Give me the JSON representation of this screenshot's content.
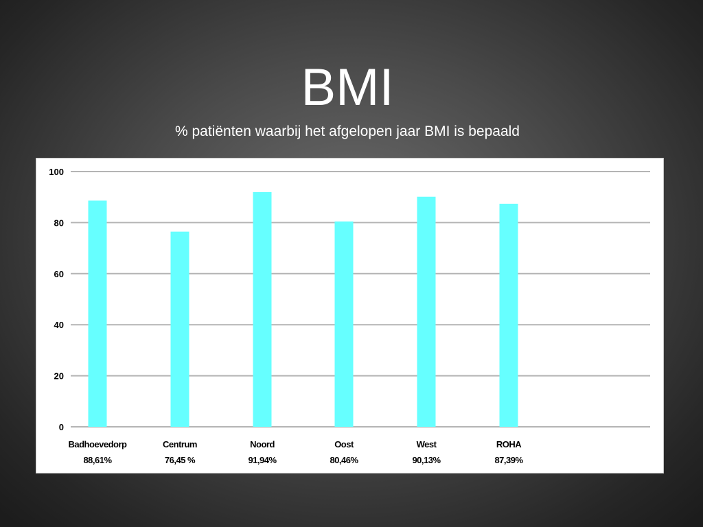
{
  "slide": {
    "title": "BMI",
    "subtitle": "% patiënten waarbij het afgelopen jaar BMI is bepaald"
  },
  "chart_data": {
    "type": "bar",
    "categories": [
      "Badhoevedorp",
      "Centrum",
      "Noord",
      "Oost",
      "West",
      "ROHA"
    ],
    "value_labels": [
      "88,61%",
      "76,45 %",
      "91,94%",
      "80,46%",
      "90,13%",
      "87,39%"
    ],
    "values": [
      88.61,
      76.45,
      91.94,
      80.46,
      90.13,
      87.39
    ],
    "ylim": [
      0,
      100
    ],
    "yticks": [
      0,
      20,
      40,
      60,
      80,
      100
    ],
    "grid": true,
    "bar_color": "#66ffff",
    "gridline_color": "#b4b4b4",
    "title": "",
    "xlabel": "",
    "ylabel": ""
  }
}
